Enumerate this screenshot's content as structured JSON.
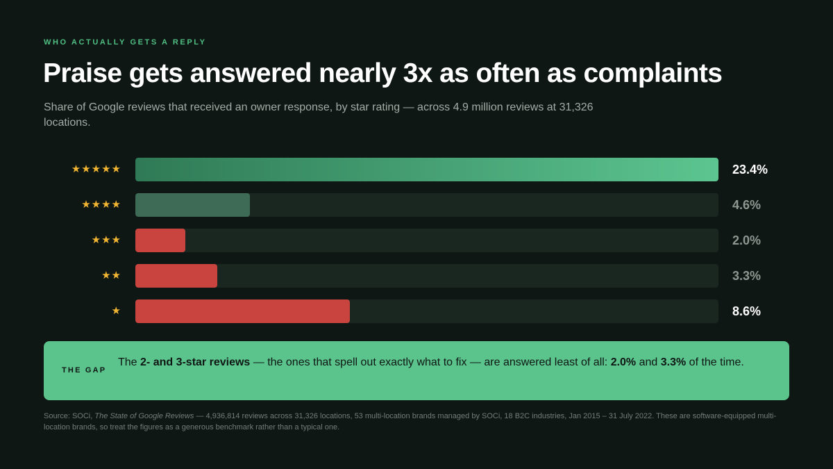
{
  "header": {
    "eyebrow": "WHO ACTUALLY GETS A REPLY",
    "title": "Praise gets answered nearly 3x as often as complaints",
    "subtitle": "Share of Google reviews that received an owner response, by star rating — across 4.9 million reviews at 31,326 locations."
  },
  "colors": {
    "background": "#0f1714",
    "accent_green": "#5bc38c",
    "muted_green": "#3e6b55",
    "red": "#c9443e",
    "star": "#f2b632",
    "track": "#1a2620"
  },
  "chart_data": {
    "type": "bar",
    "orientation": "horizontal",
    "categories": [
      "★★★★★",
      "★★★★",
      "★★★",
      "★★",
      "★"
    ],
    "values": [
      23.4,
      4.6,
      2.0,
      3.3,
      8.6
    ],
    "value_labels": [
      "23.4%",
      "4.6%",
      "2.0%",
      "3.3%",
      "8.6%"
    ],
    "xlim": [
      0,
      23.4
    ],
    "grid": false,
    "legend": "none"
  },
  "callout": {
    "label": "THE GAP",
    "t1": "The ",
    "b1": "2- and 3-star reviews",
    "t2": " — the ones that spell out exactly what to fix — are answered least of all: ",
    "b2": "2.0%",
    "t3": " and ",
    "b3": "3.3%",
    "t4": " of the time."
  },
  "source": {
    "prefix": "Source: SOCi, ",
    "report": "The State of Google Reviews",
    "rest": " — 4,936,814 reviews across 31,326 locations, 53 multi-location brands managed by SOCi, 18 B2C industries, Jan 2015 – 31 July 2022. These are software-equipped multi-location brands, so treat the figures as a generous benchmark rather than a typical one."
  }
}
